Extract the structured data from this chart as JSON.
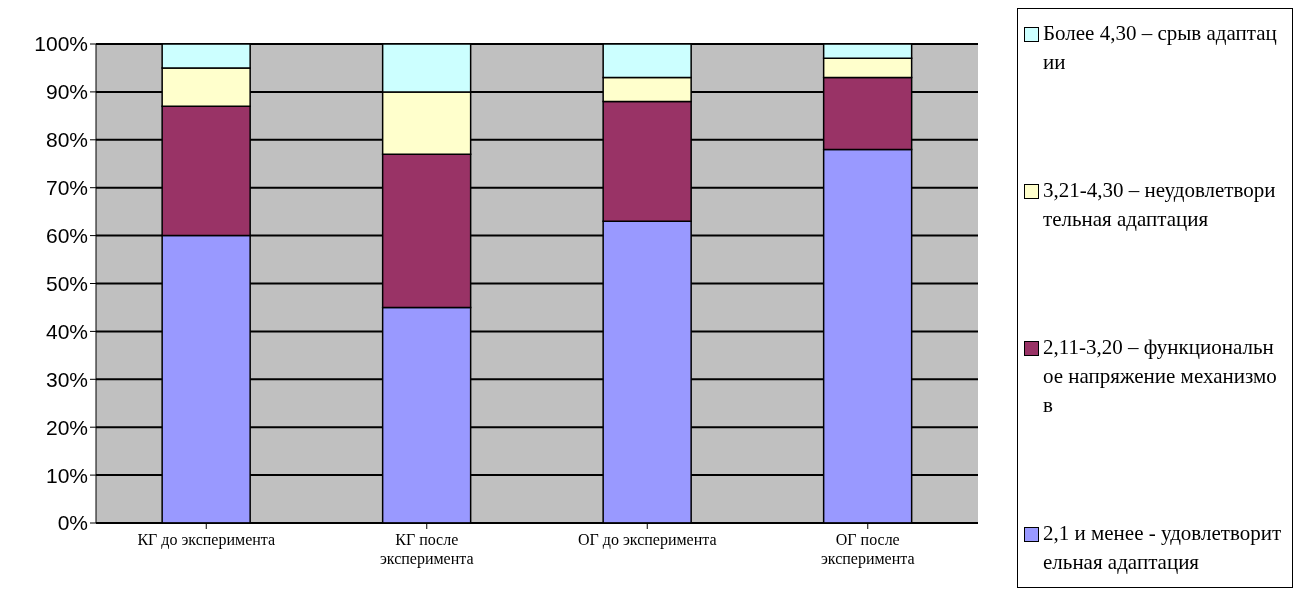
{
  "chart_data": {
    "type": "bar",
    "stacked": true,
    "categories": [
      "КГ до эксперимента",
      "КГ после эксперимента",
      "ОГ до эксперимента",
      "ОГ после эксперимента"
    ],
    "series": [
      {
        "name": "2,1 и менее - удовлетворительная адаптация",
        "color": "#9999ff",
        "values": [
          60,
          45,
          63,
          78
        ]
      },
      {
        "name": "2,11-3,20 – функциональное напряжение механизмов",
        "color": "#993366",
        "values": [
          27,
          32,
          25,
          15
        ]
      },
      {
        "name": "3,21-4,30 – неудовлетворительная адаптация",
        "color": "#ffffcc",
        "values": [
          8,
          13,
          5,
          4
        ]
      },
      {
        "name": "Более 4,30 – срыв адаптации",
        "color": "#ccffff",
        "values": [
          5,
          10,
          7,
          3
        ]
      }
    ],
    "ylim": [
      0,
      100
    ],
    "yticks": [
      {
        "value": 0,
        "label": "0%"
      },
      {
        "value": 10,
        "label": "10%"
      },
      {
        "value": 20,
        "label": "20%"
      },
      {
        "value": 30,
        "label": "30%"
      },
      {
        "value": 40,
        "label": "40%"
      },
      {
        "value": 50,
        "label": "50%"
      },
      {
        "value": 60,
        "label": "60%"
      },
      {
        "value": 70,
        "label": "70%"
      },
      {
        "value": 80,
        "label": "80%"
      },
      {
        "value": 90,
        "label": "90%"
      },
      {
        "value": 100,
        "label": "100%"
      }
    ],
    "grid": "y",
    "legend": "right"
  }
}
